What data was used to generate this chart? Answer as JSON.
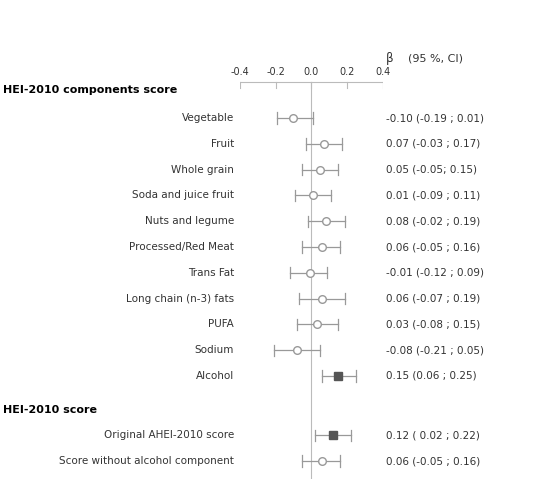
{
  "title_section1": "HEI-2010 components score",
  "title_section2": "HEI-2010 score",
  "col_header_beta": "β",
  "col_header_ci": "(95 %, CI)",
  "rows": [
    {
      "label": "Vegetable",
      "beta": -0.1,
      "lo": -0.19,
      "hi": 0.01,
      "ci_text": "-0.10 (-0.19 ; 0.01)",
      "filled": false,
      "section": 1
    },
    {
      "label": "Fruit",
      "beta": 0.07,
      "lo": -0.03,
      "hi": 0.17,
      "ci_text": "0.07 (-0.03 ; 0.17)",
      "filled": false,
      "section": 1
    },
    {
      "label": "Whole grain",
      "beta": 0.05,
      "lo": -0.05,
      "hi": 0.15,
      "ci_text": "0.05 (-0.05; 0.15)",
      "filled": false,
      "section": 1
    },
    {
      "label": "Soda and juice fruit",
      "beta": 0.01,
      "lo": -0.09,
      "hi": 0.11,
      "ci_text": "0.01 (-0.09 ; 0.11)",
      "filled": false,
      "section": 1
    },
    {
      "label": "Nuts and legume",
      "beta": 0.08,
      "lo": -0.02,
      "hi": 0.19,
      "ci_text": "0.08 (-0.02 ; 0.19)",
      "filled": false,
      "section": 1
    },
    {
      "label": "Processed/Red Meat",
      "beta": 0.06,
      "lo": -0.05,
      "hi": 0.16,
      "ci_text": "0.06 (-0.05 ; 0.16)",
      "filled": false,
      "section": 1
    },
    {
      "label": "Trans Fat",
      "beta": -0.01,
      "lo": -0.12,
      "hi": 0.09,
      "ci_text": "-0.01 (-0.12 ; 0.09)",
      "filled": false,
      "section": 1
    },
    {
      "label": "Long chain (n-3) fats",
      "beta": 0.06,
      "lo": -0.07,
      "hi": 0.19,
      "ci_text": "0.06 (-0.07 ; 0.19)",
      "filled": false,
      "section": 1
    },
    {
      "label": "PUFA",
      "beta": 0.03,
      "lo": -0.08,
      "hi": 0.15,
      "ci_text": "0.03 (-0.08 ; 0.15)",
      "filled": false,
      "section": 1
    },
    {
      "label": "Sodium",
      "beta": -0.08,
      "lo": -0.21,
      "hi": 0.05,
      "ci_text": "-0.08 (-0.21 ; 0.05)",
      "filled": false,
      "section": 1
    },
    {
      "label": "Alcohol",
      "beta": 0.15,
      "lo": 0.06,
      "hi": 0.25,
      "ci_text": "0.15 (0.06 ; 0.25)",
      "filled": true,
      "section": 1
    },
    {
      "label": "Original AHEI-2010 score",
      "beta": 0.12,
      "lo": 0.02,
      "hi": 0.22,
      "ci_text": "0.12 ( 0.02 ; 0.22)",
      "filled": true,
      "section": 2
    },
    {
      "label": "Score without alcohol component",
      "beta": 0.06,
      "lo": -0.05,
      "hi": 0.16,
      "ci_text": "0.06 (-0.05 ; 0.16)",
      "filled": false,
      "section": 2
    }
  ],
  "xmin": -0.4,
  "xmax": 0.4,
  "xticks": [
    -0.4,
    -0.2,
    0.0,
    0.2,
    0.4
  ],
  "xtick_labels": [
    "-0.4",
    "-0.2",
    "0.0",
    "0.2",
    "0.4"
  ],
  "color_open": "#999999",
  "color_filled": "#555555",
  "line_color": "#999999",
  "axis_color": "#bbbbbb",
  "text_color": "#333333",
  "section_header_color": "#000000",
  "background": "#ffffff",
  "label_indent_section2": "   "
}
